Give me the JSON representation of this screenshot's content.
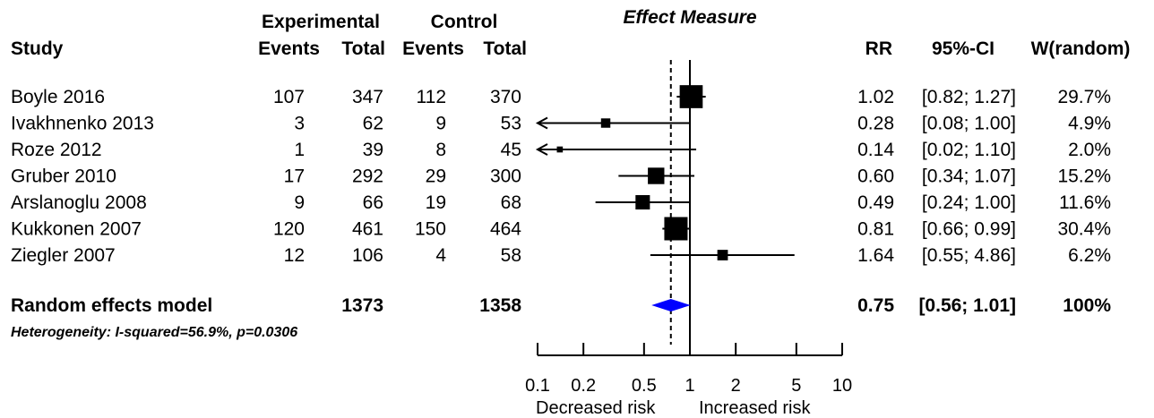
{
  "chart_data": {
    "type": "forest",
    "effect_title": "Effect Measure",
    "headers": {
      "study": "Study",
      "experimental": "Experimental",
      "control": "Control",
      "events": "Events",
      "total": "Total",
      "rr": "RR",
      "ci": "95%-CI",
      "weight": "W(random)"
    },
    "studies": [
      {
        "name": "Boyle 2016",
        "exp_events": "107",
        "exp_total": "347",
        "ctl_events": "112",
        "ctl_total": "370",
        "rr_text": "1.02",
        "ci_text": "[0.82; 1.27]",
        "w_text": "29.7%",
        "rr": 1.02,
        "lo": 0.82,
        "hi": 1.27,
        "weight": 29.7
      },
      {
        "name": "Ivakhnenko 2013",
        "exp_events": "3",
        "exp_total": "62",
        "ctl_events": "9",
        "ctl_total": "53",
        "rr_text": "0.28",
        "ci_text": "[0.08; 1.00]",
        "w_text": "4.9%",
        "rr": 0.28,
        "lo": 0.08,
        "hi": 1.0,
        "weight": 4.9
      },
      {
        "name": "Roze 2012",
        "exp_events": "1",
        "exp_total": "39",
        "ctl_events": "8",
        "ctl_total": "45",
        "rr_text": "0.14",
        "ci_text": "[0.02; 1.10]",
        "w_text": "2.0%",
        "rr": 0.14,
        "lo": 0.02,
        "hi": 1.1,
        "weight": 2.0
      },
      {
        "name": "Gruber 2010",
        "exp_events": "17",
        "exp_total": "292",
        "ctl_events": "29",
        "ctl_total": "300",
        "rr_text": "0.60",
        "ci_text": "[0.34; 1.07]",
        "w_text": "15.2%",
        "rr": 0.6,
        "lo": 0.34,
        "hi": 1.07,
        "weight": 15.2
      },
      {
        "name": "Arslanoglu 2008",
        "exp_events": "9",
        "exp_total": "66",
        "ctl_events": "19",
        "ctl_total": "68",
        "rr_text": "0.49",
        "ci_text": "[0.24; 1.00]",
        "w_text": "11.6%",
        "rr": 0.49,
        "lo": 0.24,
        "hi": 1.0,
        "weight": 11.6
      },
      {
        "name": "Kukkonen 2007",
        "exp_events": "120",
        "exp_total": "461",
        "ctl_events": "150",
        "ctl_total": "464",
        "rr_text": "0.81",
        "ci_text": "[0.66; 0.99]",
        "w_text": "30.4%",
        "rr": 0.81,
        "lo": 0.66,
        "hi": 0.99,
        "weight": 30.4
      },
      {
        "name": "Ziegler 2007",
        "exp_events": "12",
        "exp_total": "106",
        "ctl_events": "4",
        "ctl_total": "58",
        "rr_text": "1.64",
        "ci_text": "[0.55; 4.86]",
        "w_text": "6.2%",
        "rr": 1.64,
        "lo": 0.55,
        "hi": 4.86,
        "weight": 6.2
      }
    ],
    "pooled": {
      "label": "Random effects model",
      "exp_total": "1373",
      "ctl_total": "1358",
      "rr_text": "0.75",
      "ci_text": "[0.56; 1.01]",
      "w_text": "100%",
      "rr": 0.75,
      "lo": 0.56,
      "hi": 1.01
    },
    "heterogeneity": "Heterogeneity: I-squared=56.9%, p=0.0306",
    "x_axis": {
      "scale": "log",
      "range": [
        0.1,
        10
      ],
      "ticks": [
        0.1,
        0.2,
        0.5,
        1,
        2,
        5,
        10
      ],
      "tick_labels": [
        "0.1",
        "0.2",
        "0.5",
        "1",
        "2",
        "5",
        "10"
      ]
    },
    "direction_labels": {
      "left": "Decreased risk",
      "right": "Increased risk"
    },
    "colors": {
      "diamond": "#0000ff",
      "marks": "#000000"
    }
  }
}
